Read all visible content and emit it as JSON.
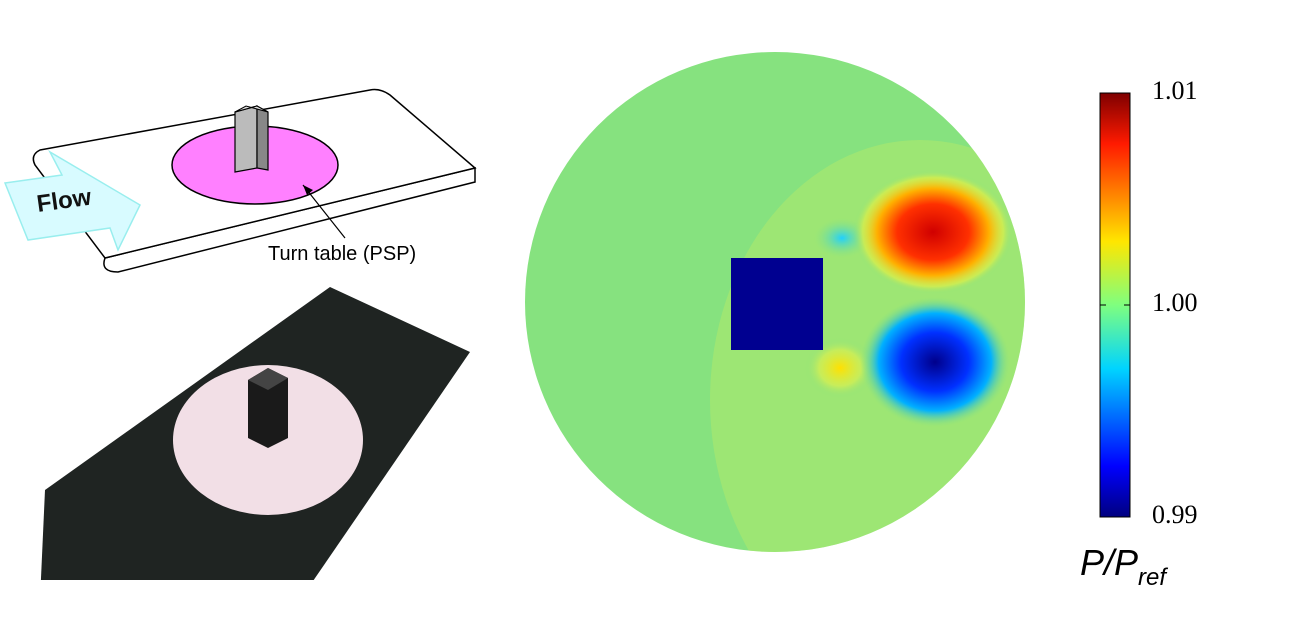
{
  "schematic": {
    "flow_label": "Flow",
    "turntable_label": "Turn table (PSP)"
  },
  "colorbar": {
    "ylim": [
      0.99,
      1.01
    ],
    "ticks": [
      0.99,
      {
        "value": 1,
        "label": "1.00"
      },
      1.01
    ],
    "label": "P/P",
    "label_subscript": "ref"
  }
}
